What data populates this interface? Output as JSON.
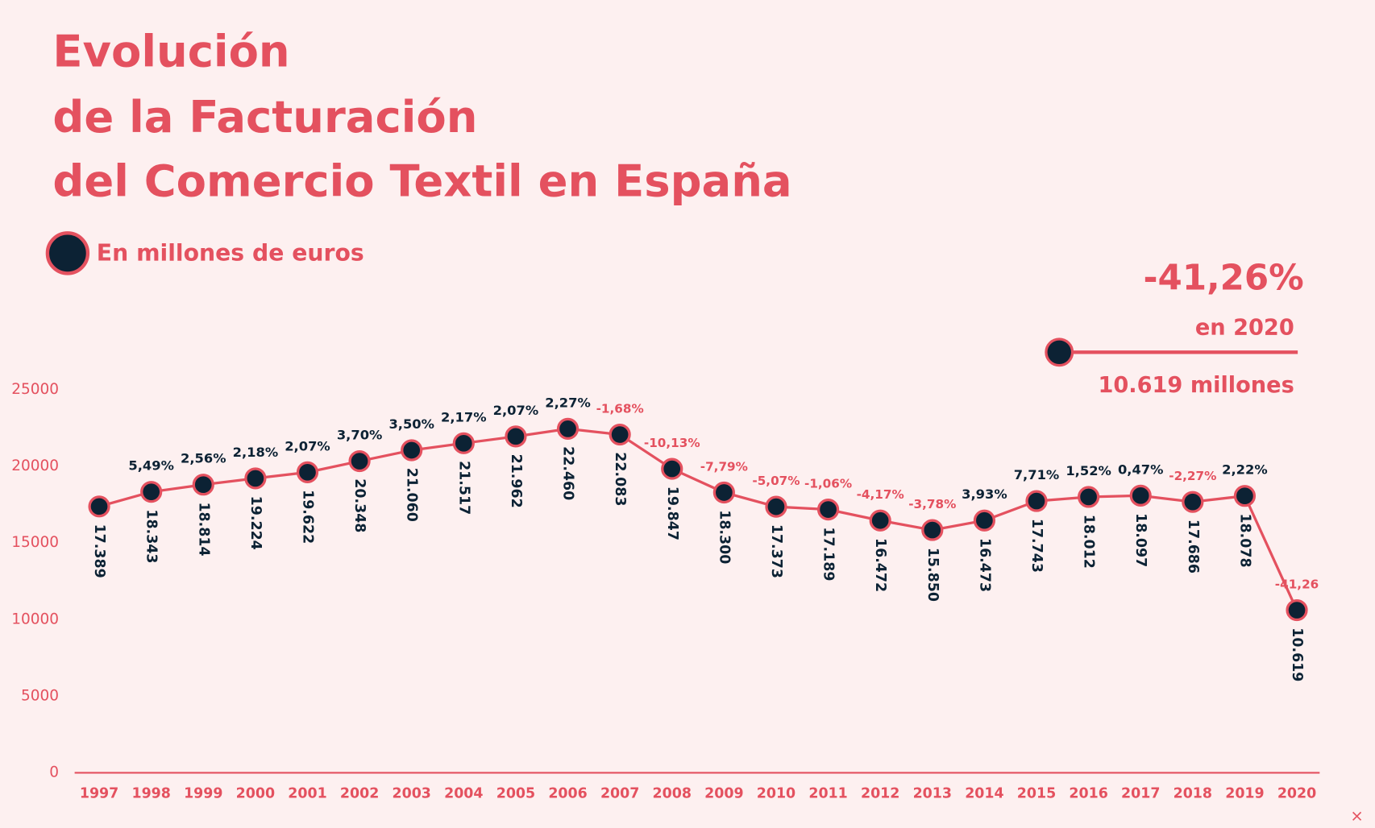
{
  "chart_data": {
    "type": "line",
    "title": [
      "Evolución",
      "de la Facturación",
      "del Comercio Textil en España"
    ],
    "categories": [
      "1997",
      "1998",
      "1999",
      "2000",
      "2001",
      "2002",
      "2003",
      "2004",
      "2005",
      "2006",
      "2007",
      "2008",
      "2009",
      "2010",
      "2011",
      "2012",
      "2013",
      "2014",
      "2015",
      "2016",
      "2017",
      "2018",
      "2019",
      "2020"
    ],
    "series": [
      {
        "name": "En millones de euros",
        "color": "#e4515f",
        "marker_color": "#0c2234",
        "values": [
          17389,
          18343,
          18814,
          19224,
          19622,
          20348,
          21060,
          21517,
          21962,
          22460,
          22083,
          19847,
          18300,
          17373,
          17189,
          16472,
          15850,
          16473,
          17743,
          18012,
          18097,
          17686,
          18078,
          10619
        ],
        "value_labels": [
          "17.389",
          "18.343",
          "18.814",
          "19.224",
          "19.622",
          "20.348",
          "21.060",
          "21.517",
          "21.962",
          "22.460",
          "22.083",
          "19.847",
          "18.300",
          "17.373",
          "17.189",
          "16.472",
          "15.850",
          "16.473",
          "17.743",
          "18.012",
          "18.097",
          "17.686",
          "18.078",
          "10.619"
        ],
        "change_labels": [
          null,
          "5,49%",
          "2,56%",
          "2,18%",
          "2,07%",
          "3,70%",
          "3,50%",
          "2,17%",
          "2,07%",
          "2,27%",
          "-1,68%",
          "-10,13%",
          "-7,79%",
          "-5,07%",
          "-1,06%",
          "-4,17%",
          "-3,78%",
          "3,93%",
          "7,71%",
          "1,52%",
          "0,47%",
          "-2,27%",
          "2,22%",
          "-41,26"
        ]
      }
    ],
    "positive_label_color": "#0c2234",
    "negative_label_color": "#e4515f",
    "ylim": [
      0,
      25000
    ],
    "yticks": [
      0,
      5000,
      10000,
      15000,
      20000,
      25000
    ],
    "annotation": {
      "headline": "-41,26%",
      "subline": "en 2020",
      "value": "10.619 millones"
    }
  }
}
